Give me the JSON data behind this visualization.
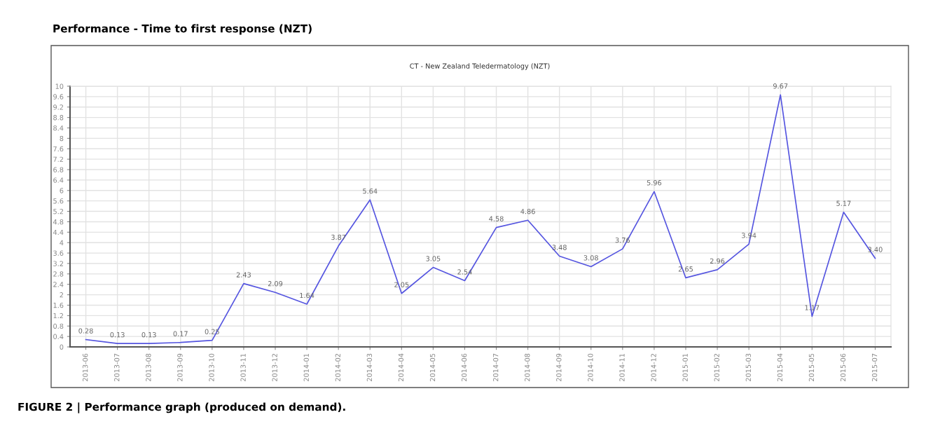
{
  "chart_data": {
    "type": "line",
    "title": "Performance - Time to first response (NZT)",
    "subtitle": "CT - New Zealand Teledermatology (NZT)",
    "annotations": [
      "FIGURE 2 | Performance graph (produced on demand)."
    ],
    "categories": [
      "2013-06",
      "2013-07",
      "2013-08",
      "2013-09",
      "2013-10",
      "2013-11",
      "2013-12",
      "2014-01",
      "2014-02",
      "2014-03",
      "2014-04",
      "2014-05",
      "2014-06",
      "2014-07",
      "2014-08",
      "2014-09",
      "2014-10",
      "2014-11",
      "2014-12",
      "2015-01",
      "2015-02",
      "2015-03",
      "2015-04",
      "2015-05",
      "2015-06",
      "2015-07"
    ],
    "series": [
      {
        "color": "#5555e0",
        "values": [
          0.28,
          0.13,
          0.13,
          0.17,
          0.25,
          2.43,
          2.09,
          1.64,
          3.87,
          5.64,
          2.05,
          3.05,
          2.54,
          4.58,
          4.86,
          3.48,
          3.08,
          3.76,
          5.96,
          2.65,
          2.96,
          3.94,
          9.67,
          1.17,
          5.17,
          3.4
        ]
      }
    ],
    "value_labels": [
      "0.28",
      "0.13",
      "0.13",
      "0.17",
      "0.25",
      "2.43",
      "2.09",
      "1.64",
      "3.87",
      "5.64",
      "2.05",
      "3.05",
      "2.54",
      "4.58",
      "4.86",
      "3.48",
      "3.08",
      "3.76",
      "5.96",
      "2.65",
      "2.96",
      "3.94",
      "9.67",
      "1.17",
      "5.17",
      "3.40"
    ],
    "ylim": [
      0,
      10
    ],
    "yticks": [
      0,
      0.4,
      0.8,
      1.2,
      1.6,
      2,
      2.4,
      2.8,
      3.2,
      3.6,
      4,
      4.4,
      4.8,
      5.2,
      5.6,
      6,
      6.4,
      6.8,
      7.2,
      7.6,
      8,
      8.4,
      8.8,
      9.2,
      9.6,
      10
    ],
    "grid": true,
    "legend": false,
    "marker": "none",
    "line_style": "solid"
  }
}
